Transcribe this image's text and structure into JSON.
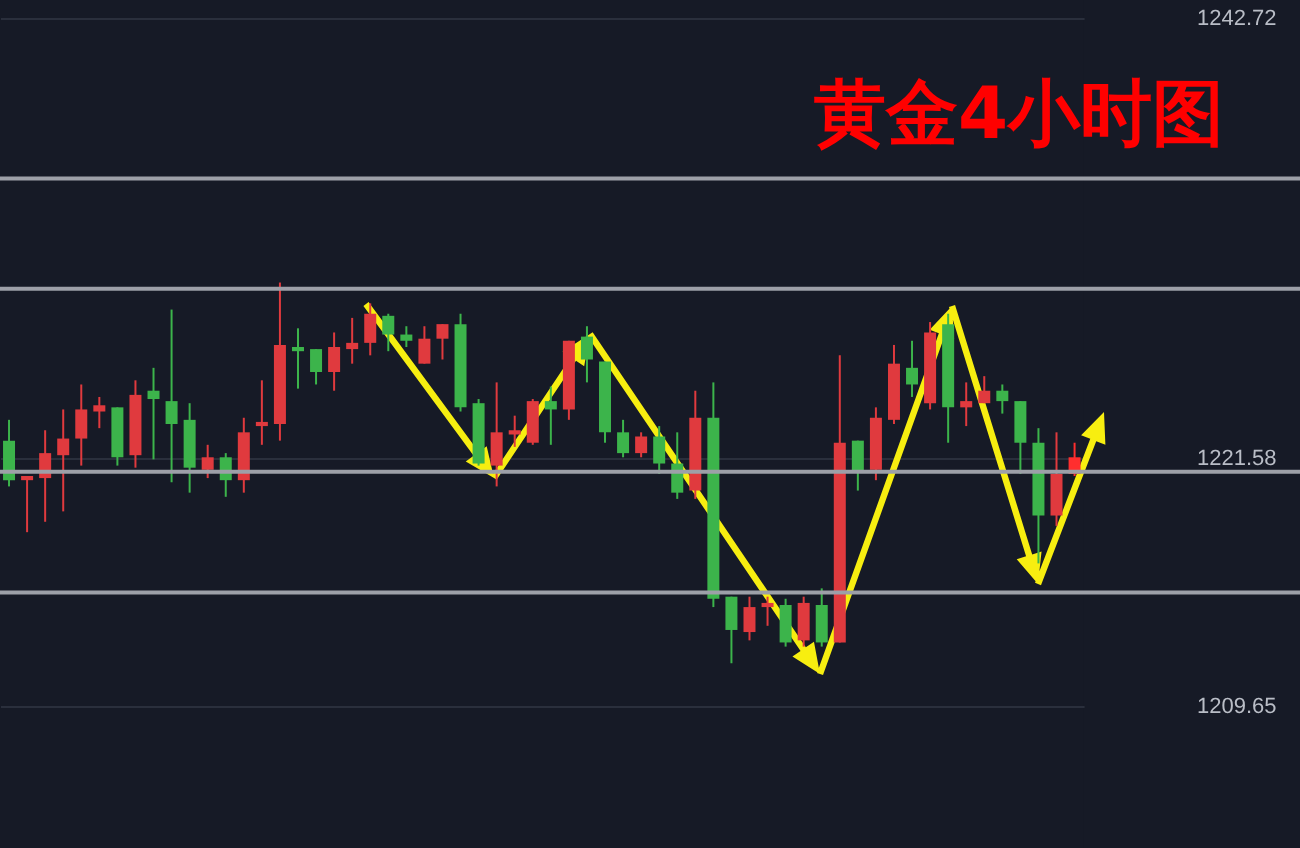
{
  "chart_data": {
    "type": "candlestick",
    "title": "黄金4小时图",
    "categories": [
      null,
      null,
      null,
      null,
      null,
      null,
      null,
      null,
      null,
      null,
      null,
      null,
      null,
      null,
      null,
      null,
      null,
      null,
      null,
      null,
      null,
      null,
      null,
      null,
      null,
      null,
      null,
      null,
      null,
      null,
      null,
      null,
      null,
      null,
      null,
      null,
      null,
      null,
      null,
      null,
      null,
      null,
      null,
      null,
      null,
      null,
      null,
      null,
      null,
      null,
      null,
      null,
      null,
      null,
      null,
      null,
      null,
      null,
      null,
      null
    ],
    "ohlc": [
      [
        1222.4,
        1223.4,
        1220.2,
        1220.5
      ],
      [
        1220.5,
        1220.7,
        1218.0,
        1220.7
      ],
      [
        1220.6,
        1222.9,
        1218.5,
        1221.8
      ],
      [
        1221.7,
        1223.9,
        1219.0,
        1222.5
      ],
      [
        1222.5,
        1225.1,
        1221.2,
        1223.9
      ],
      [
        1223.8,
        1224.5,
        1223.0,
        1224.1
      ],
      [
        1224.0,
        1224.0,
        1221.2,
        1221.6
      ],
      [
        1221.7,
        1225.3,
        1221.1,
        1224.6
      ],
      [
        1224.8,
        1225.9,
        1221.5,
        1224.4
      ],
      [
        1224.3,
        1228.7,
        1220.4,
        1223.2
      ],
      [
        1223.4,
        1224.2,
        1219.9,
        1221.1
      ],
      [
        1221.0,
        1222.2,
        1220.6,
        1221.6
      ],
      [
        1221.6,
        1221.8,
        1219.7,
        1220.5
      ],
      [
        1220.5,
        1223.5,
        1219.9,
        1222.8
      ],
      [
        1223.1,
        1225.3,
        1222.2,
        1223.3
      ],
      [
        1223.2,
        1230.0,
        1222.4,
        1227.0
      ],
      [
        1226.9,
        1227.8,
        1224.9,
        1226.7
      ],
      [
        1226.8,
        1226.8,
        1225.1,
        1225.7
      ],
      [
        1225.7,
        1227.6,
        1224.8,
        1226.9
      ],
      [
        1226.8,
        1228.3,
        1226.1,
        1227.1
      ],
      [
        1227.1,
        1229.0,
        1226.5,
        1228.5
      ],
      [
        1228.4,
        1228.5,
        1226.7,
        1227.5
      ],
      [
        1227.5,
        1227.9,
        1226.9,
        1227.2
      ],
      [
        1226.1,
        1227.9,
        1226.1,
        1227.3
      ],
      [
        1227.3,
        1228.0,
        1226.3,
        1228.0
      ],
      [
        1228.0,
        1228.5,
        1223.8,
        1224.0
      ],
      [
        1224.2,
        1224.4,
        1221.2,
        1221.3
      ],
      [
        1221.2,
        1225.2,
        1220.2,
        1222.8
      ],
      [
        1222.7,
        1223.6,
        1222.1,
        1222.9
      ],
      [
        1222.3,
        1224.4,
        1222.2,
        1224.3
      ],
      [
        1224.3,
        1225.0,
        1222.2,
        1223.9
      ],
      [
        1223.9,
        1227.2,
        1223.4,
        1227.2
      ],
      [
        1227.4,
        1227.9,
        1225.2,
        1226.3
      ],
      [
        1226.2,
        1226.2,
        1222.3,
        1222.8
      ],
      [
        1222.8,
        1223.4,
        1221.6,
        1221.8
      ],
      [
        1221.8,
        1222.8,
        1221.6,
        1222.6
      ],
      [
        1222.6,
        1223.1,
        1220.8,
        1221.3
      ],
      [
        1221.3,
        1222.8,
        1219.6,
        1219.9
      ],
      [
        1220.0,
        1224.8,
        1219.6,
        1223.5
      ],
      [
        1223.5,
        1225.2,
        1214.4,
        1214.8
      ],
      [
        1214.9,
        1214.9,
        1211.7,
        1213.3
      ],
      [
        1213.2,
        1214.9,
        1212.8,
        1214.4
      ],
      [
        1214.4,
        1214.9,
        1213.5,
        1214.6
      ],
      [
        1214.5,
        1214.8,
        1212.5,
        1212.7
      ],
      [
        1212.8,
        1214.9,
        1212.5,
        1214.6
      ],
      [
        1214.5,
        1215.3,
        1212.5,
        1212.7
      ],
      [
        1212.7,
        1226.5,
        1212.7,
        1222.3
      ],
      [
        1222.4,
        1222.4,
        1220.0,
        1220.9
      ],
      [
        1221.0,
        1224.0,
        1220.5,
        1223.5
      ],
      [
        1223.4,
        1227.0,
        1223.2,
        1226.1
      ],
      [
        1225.9,
        1227.2,
        1224.5,
        1225.1
      ],
      [
        1224.2,
        1228.1,
        1223.9,
        1227.6
      ],
      [
        1228.0,
        1228.5,
        1222.3,
        1224.0
      ],
      [
        1224.0,
        1225.2,
        1223.1,
        1224.3
      ],
      [
        1224.2,
        1225.5,
        1224.2,
        1224.8
      ],
      [
        1224.8,
        1225.1,
        1223.7,
        1224.3
      ],
      [
        1224.3,
        1224.3,
        1220.8,
        1222.3
      ],
      [
        1222.3,
        1223.0,
        1216.5,
        1218.8
      ],
      [
        1218.8,
        1222.8,
        1218.3,
        1220.8
      ],
      [
        1220.8,
        1222.3,
        1220.7,
        1221.6
      ]
    ],
    "colors": [
      "#3cb44b",
      "#e03a3e",
      "#e03a3e",
      "#e03a3e",
      "#e03a3e",
      "#e03a3e",
      "#3cb44b",
      "#e03a3e",
      "#3cb44b",
      "#3cb44b",
      "#3cb44b",
      "#e03a3e",
      "#3cb44b",
      "#e03a3e",
      "#e03a3e",
      "#e03a3e",
      "#3cb44b",
      "#3cb44b",
      "#e03a3e",
      "#e03a3e",
      "#e03a3e",
      "#3cb44b",
      "#3cb44b",
      "#e03a3e",
      "#e03a3e",
      "#3cb44b",
      "#3cb44b",
      "#e03a3e",
      "#e03a3e",
      "#e03a3e",
      "#3cb44b",
      "#e03a3e",
      "#3cb44b",
      "#3cb44b",
      "#3cb44b",
      "#e03a3e",
      "#3cb44b",
      "#3cb44b",
      "#e03a3e",
      "#3cb44b",
      "#3cb44b",
      "#e03a3e",
      "#e03a3e",
      "#3cb44b",
      "#e03a3e",
      "#3cb44b",
      "#e03a3e",
      "#3cb44b",
      "#e03a3e",
      "#e03a3e",
      "#3cb44b",
      "#e03a3e",
      "#3cb44b",
      "#e03a3e",
      "#e03a3e",
      "#3cb44b",
      "#3cb44b",
      "#3cb44b",
      "#e03a3e",
      "#ff2e2e"
    ],
    "ylim": [
      1202.82,
      1243.58
    ],
    "yticks": [
      1242.72,
      1221.58,
      1209.65
    ],
    "grid": "y",
    "tick_labels": "y",
    "ref_lines": [
      {
        "axis": "y",
        "value": 1235.0,
        "color": "#9da0a8"
      },
      {
        "axis": "y",
        "value": 1229.7,
        "color": "#9da0a8"
      },
      {
        "axis": "y",
        "value": 1220.9,
        "color": "#9da0a8"
      },
      {
        "axis": "y",
        "value": 1215.1,
        "color": "#9da0a8"
      }
    ]
  }
}
